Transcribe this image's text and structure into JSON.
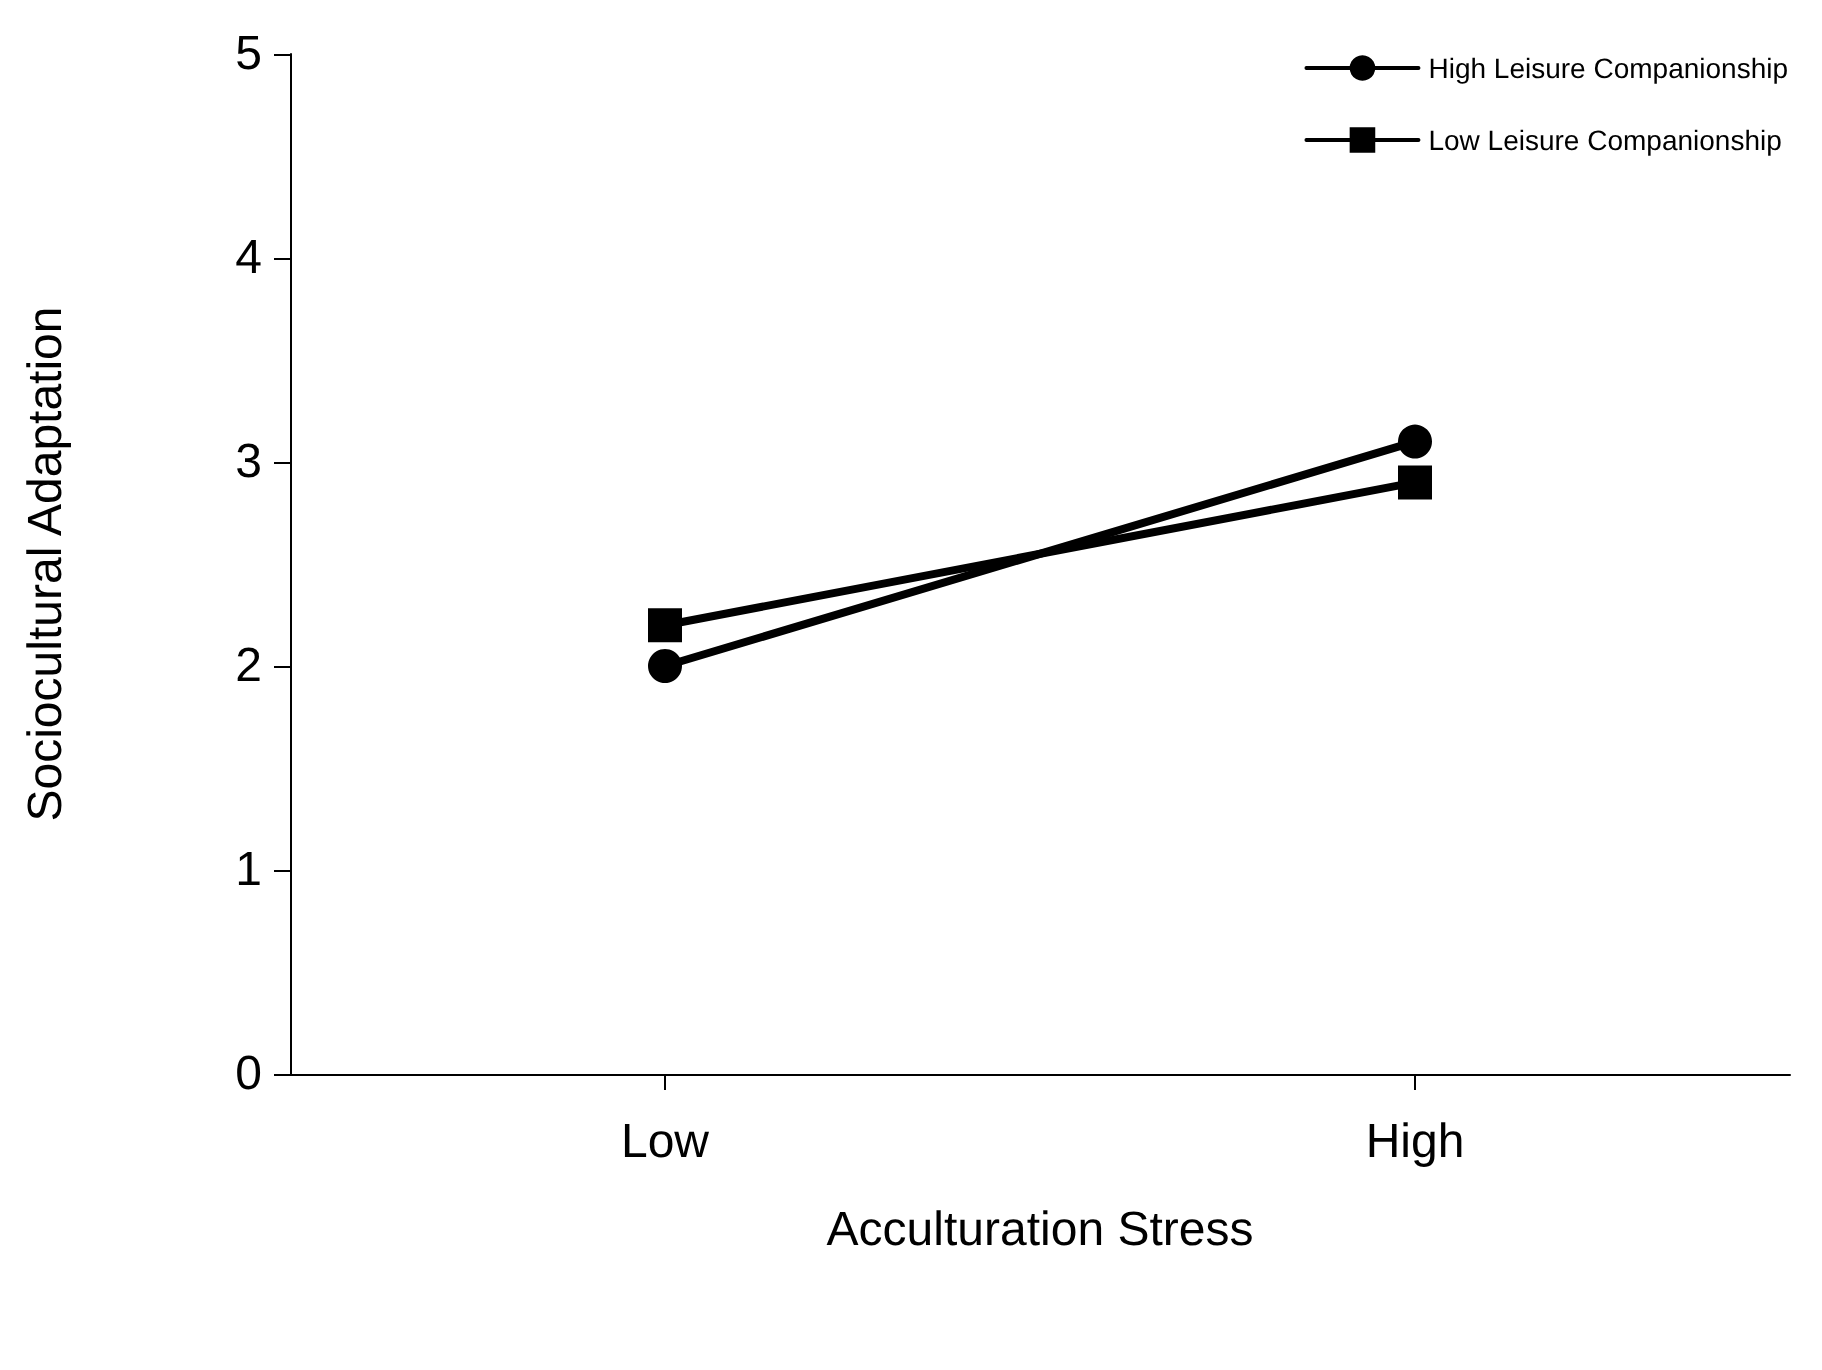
{
  "chart_data": {
    "type": "line",
    "xlabel": "Acculturation Stress",
    "ylabel": "Sociocultural Adaptation",
    "categories": [
      "Low",
      "High"
    ],
    "series": [
      {
        "name": "High Leisure Companionship",
        "color": "#000000",
        "marker": "circle",
        "values": [
          2.0,
          3.1
        ]
      },
      {
        "name": "Low Leisure Companionship",
        "color": "#000000",
        "marker": "square",
        "values": [
          2.2,
          2.9
        ]
      }
    ],
    "ylim": [
      0,
      5
    ],
    "yticks": [
      0,
      1,
      2,
      3,
      4,
      5
    ],
    "grid": false,
    "legend": "top right",
    "line_style": "solid"
  }
}
